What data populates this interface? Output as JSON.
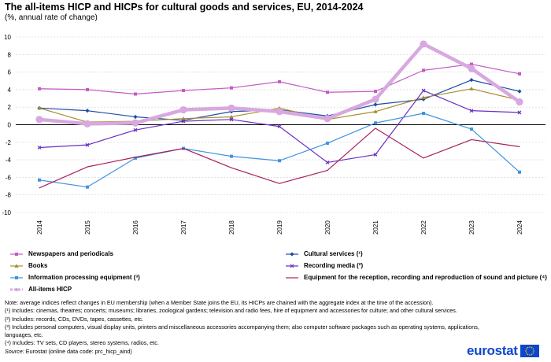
{
  "title": "The all-items HICP and HICPs for cultural goods and services, EU, 2014-2024",
  "subtitle": "(%, annual rate of change)",
  "chart_data": {
    "type": "line",
    "categories": [
      "2014",
      "2015",
      "2016",
      "2017",
      "2018",
      "2019",
      "2020",
      "2021",
      "2022",
      "2023",
      "2024"
    ],
    "ylim": [
      -10,
      10
    ],
    "yticks": [
      10,
      8,
      6,
      4,
      2,
      0,
      -2,
      -4,
      -6,
      -8,
      -10
    ],
    "grid": true,
    "series": [
      {
        "name": "Newspapers and periodicals",
        "color": "#c45ac5",
        "marker": "square",
        "width": 1.2,
        "values": [
          4.1,
          4.0,
          3.5,
          3.9,
          4.2,
          4.9,
          3.7,
          3.8,
          6.2,
          6.9,
          5.8
        ]
      },
      {
        "name": "Cultural services (¹)",
        "color": "#1d4ea3",
        "marker": "diamond",
        "width": 1.2,
        "values": [
          1.9,
          1.6,
          0.9,
          0.5,
          1.5,
          1.7,
          1.0,
          2.3,
          2.9,
          5.1,
          3.8
        ]
      },
      {
        "name": "Books",
        "color": "#a88c2e",
        "marker": "triangle",
        "width": 1.2,
        "values": [
          1.9,
          0.3,
          0.4,
          0.7,
          0.9,
          1.9,
          0.6,
          1.5,
          3.1,
          4.1,
          2.8
        ]
      },
      {
        "name": "Recording media (²)",
        "color": "#6a2ec3",
        "marker": "x",
        "width": 1.2,
        "values": [
          -2.6,
          -2.3,
          -0.6,
          0.4,
          0.6,
          -0.2,
          -4.3,
          -3.4,
          3.9,
          1.6,
          1.4
        ]
      },
      {
        "name": "Information processing equipment (³)",
        "color": "#3f93e0",
        "marker": "square",
        "width": 1.2,
        "values": [
          -6.3,
          -7.1,
          -3.8,
          -2.7,
          -3.6,
          -4.1,
          -2.1,
          0.2,
          1.3,
          -0.5,
          -5.4
        ]
      },
      {
        "name": "Equipment for the reception, recording and reproduction of sound and picture (⁴)",
        "color": "#a8205e",
        "marker": "none",
        "width": 1.2,
        "values": [
          -7.2,
          -4.8,
          -3.7,
          -2.7,
          -4.9,
          -6.7,
          -5.2,
          -0.4,
          -3.8,
          -1.7,
          -2.5
        ]
      },
      {
        "name": "All-items HICP",
        "color": "#d8a8e0",
        "marker": "circle",
        "width": 4.5,
        "values": [
          0.6,
          0.1,
          0.2,
          1.7,
          1.9,
          1.5,
          0.7,
          2.9,
          9.2,
          6.4,
          2.6
        ]
      }
    ]
  },
  "notes": {
    "line1": "Note: average indices reflect changes in EU membership (when a Member State joins the EU, its HICPs are chained with the aggregate index at the time of the accession).",
    "line2": "(¹) Includes: cinemas, theatres; concerts; museums; libraries, zoological gardens; television and radio fees, hire of equipment and accessories for culture; and other cultural services.",
    "line3": "(²) Includes: records, CDs, DVDs, tapes, cassettes, etc.",
    "line4": "(³) Includes personal computers, visual display units, printers and miscellaneous accessories accompanying them; also computer software packages such as operating systems, applications,",
    "line5": "languages, etc.",
    "line6": "(⁴) Includes: TV sets, CD players, stereo systems, radios, etc.",
    "source_label": "Source:",
    "source_text": " Eurostat (online data code: prc_hicp_aind)"
  },
  "logo": {
    "text": "eurostat",
    "flag_color": "#0e47cb",
    "star_color": "#ffdd00"
  }
}
